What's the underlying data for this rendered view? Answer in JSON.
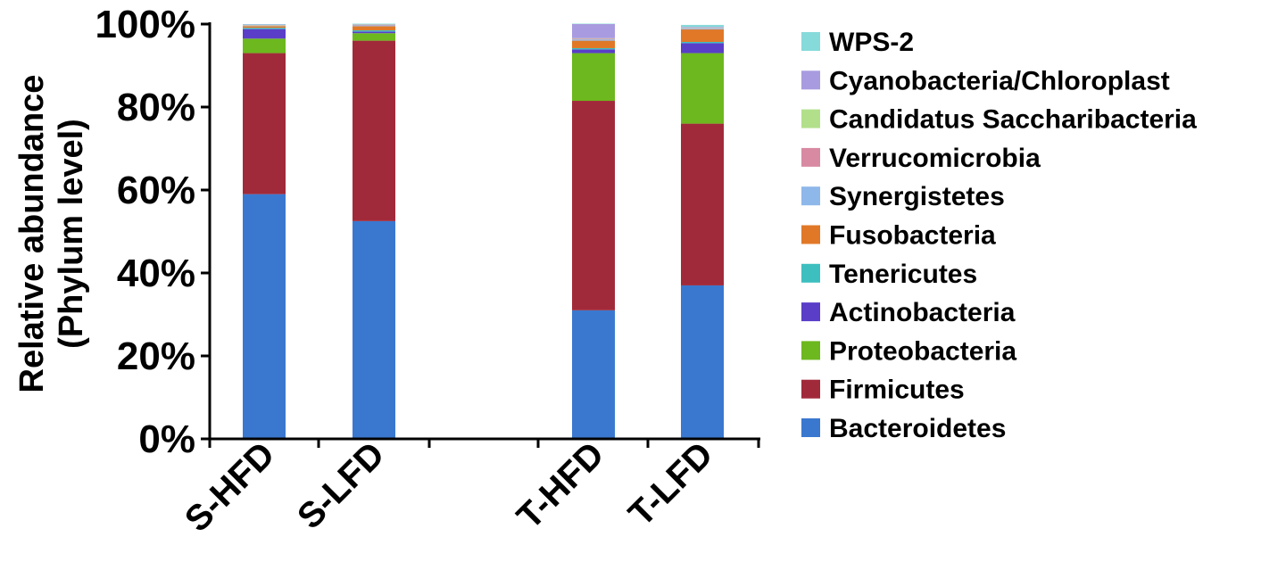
{
  "chart_data": {
    "type": "bar",
    "stacked": true,
    "ylabel": [
      "Relative abundance",
      "(Phylum level)"
    ],
    "ylim": [
      0,
      100
    ],
    "yticks": [
      "0%",
      "20%",
      "40%",
      "60%",
      "80%",
      "100%"
    ],
    "categories": [
      "S-HFD",
      "S-LFD",
      "T-HFD",
      "T-LFD"
    ],
    "legend_position": "right",
    "series": [
      {
        "name": "Bacteroidetes",
        "color": "#3a78cf",
        "values": [
          59,
          52.5,
          31,
          37
        ]
      },
      {
        "name": "Firmicutes",
        "color": "#a12a3a",
        "values": [
          34,
          43.5,
          50.5,
          39
        ]
      },
      {
        "name": "Proteobacteria",
        "color": "#6cb81e",
        "values": [
          3.5,
          1.8,
          11.5,
          17
        ]
      },
      {
        "name": "Actinobacteria",
        "color": "#5a3ec8",
        "values": [
          2.3,
          0.4,
          0.9,
          2.4
        ]
      },
      {
        "name": "Tenericutes",
        "color": "#3ebfbf",
        "values": [
          0.3,
          0.3,
          0.3,
          0.3
        ]
      },
      {
        "name": "Fusobacteria",
        "color": "#e07828",
        "values": [
          0.4,
          1,
          1.8,
          3
        ]
      },
      {
        "name": "Synergistetes",
        "color": "#8eb8ea",
        "values": [
          0.1,
          0.2,
          0.3,
          0.2
        ]
      },
      {
        "name": "Verrucomicrobia",
        "color": "#d88aa2",
        "values": [
          0.1,
          0.1,
          0.2,
          0.1
        ]
      },
      {
        "name": "Candidatus Saccharibacteria",
        "color": "#b2e08a",
        "values": [
          0.1,
          0.1,
          0.1,
          0.1
        ]
      },
      {
        "name": "Cyanobacteria/Chloroplast",
        "color": "#a99be0",
        "values": [
          0.1,
          0.1,
          3.4,
          0.2
        ]
      },
      {
        "name": "WPS-2",
        "color": "#86dada",
        "values": [
          0.1,
          0.1,
          0.1,
          0.5
        ]
      }
    ]
  }
}
